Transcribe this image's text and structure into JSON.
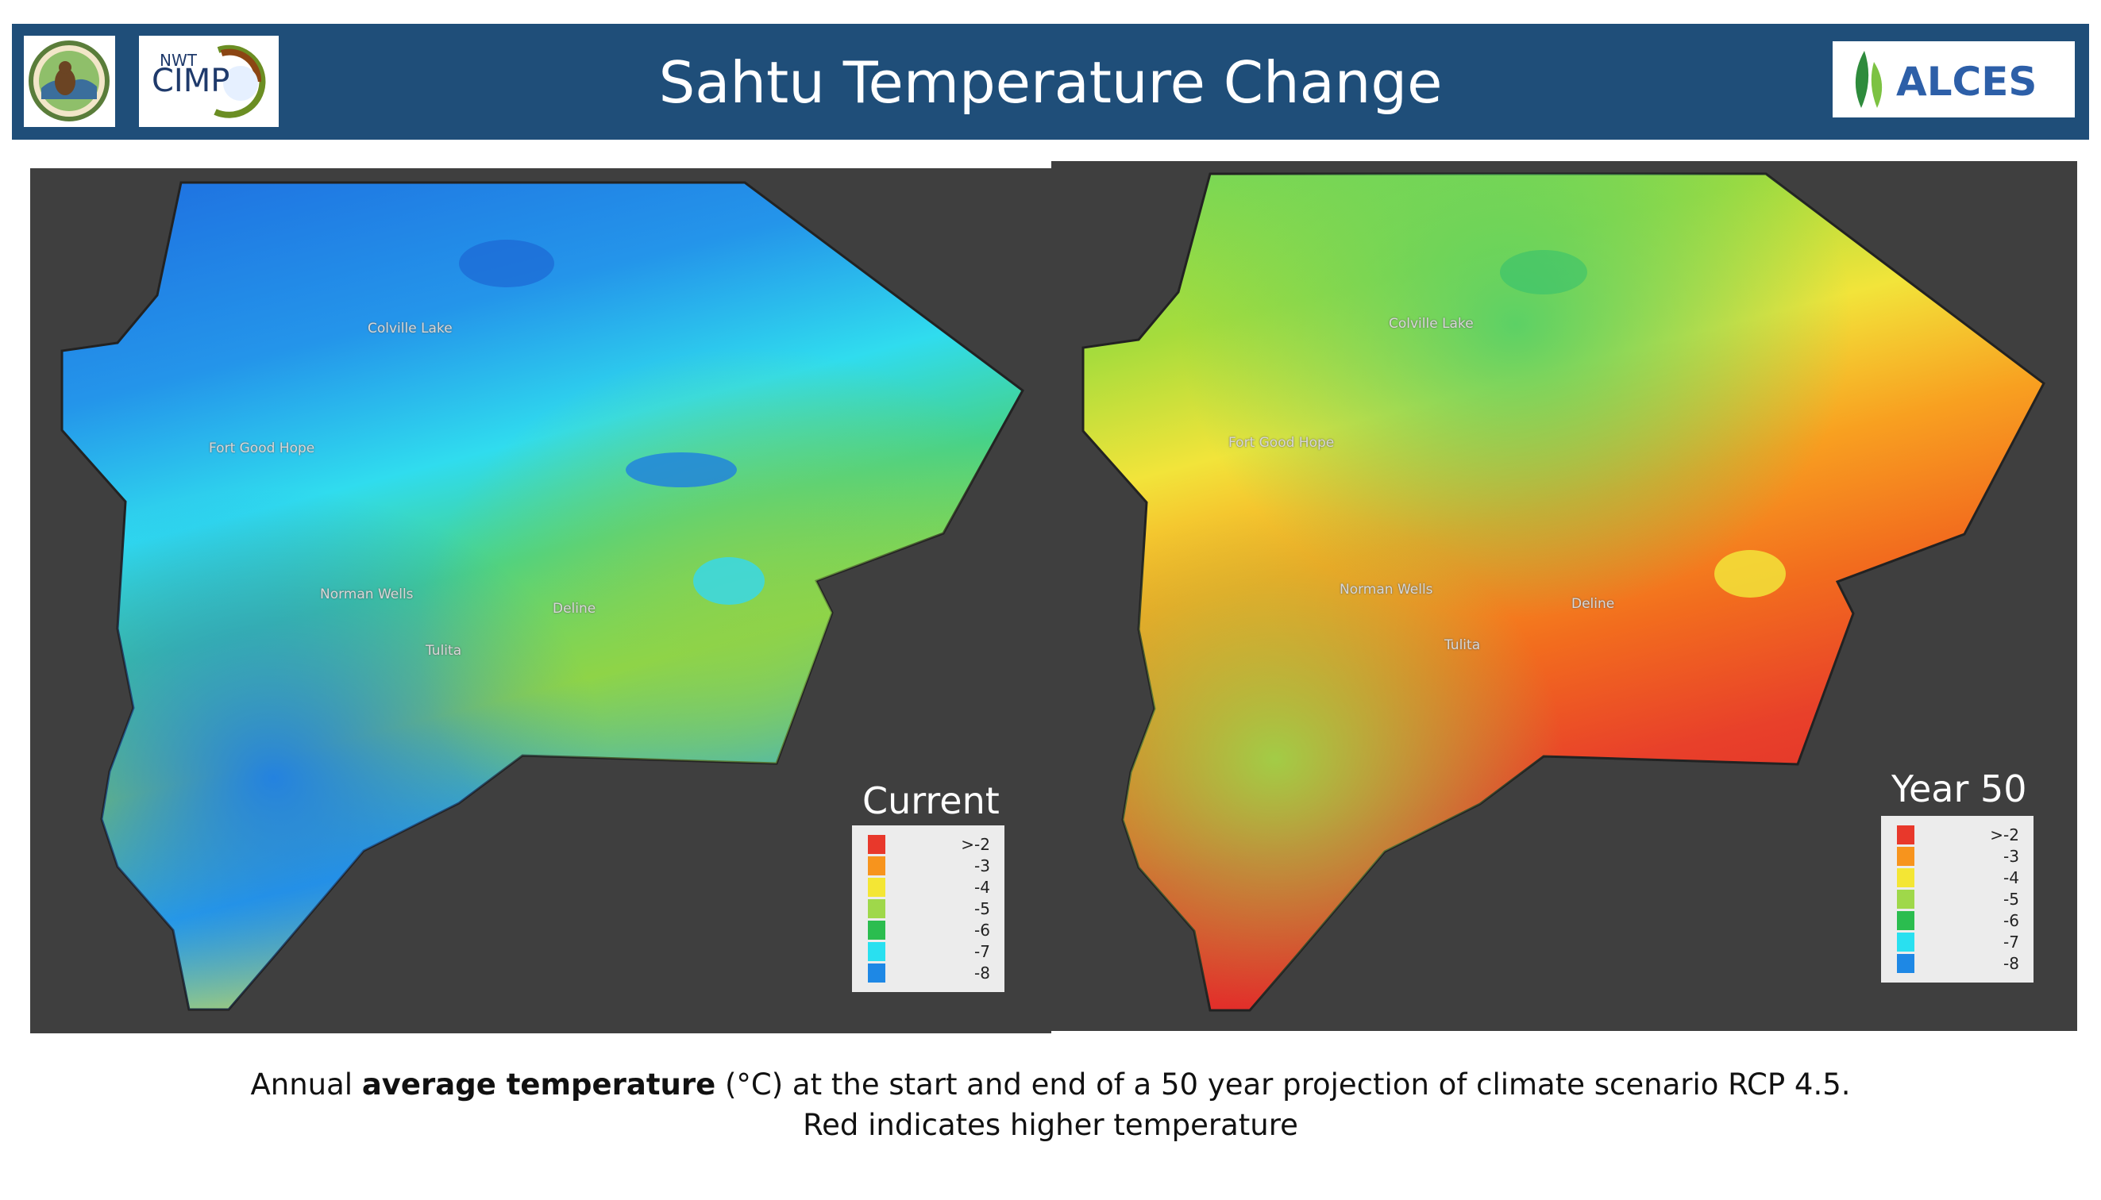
{
  "header": {
    "title": "Sahtu Temperature Change",
    "background_color": "#1f4e79"
  },
  "logos": {
    "sahtu": {
      "icon": "sahtu-renewable-resources-board-logo"
    },
    "cimp": {
      "text_small": "NWT",
      "text_large": "CIMP",
      "icon": "nwt-cimp-logo"
    },
    "alces": {
      "text": "ALCES",
      "icon": "alces-leaf-logo"
    }
  },
  "maps": [
    {
      "label": "Current",
      "places": {
        "colville_lake": "Colville Lake",
        "fort_good_hope": "Fort Good Hope",
        "norman_wells": "Norman Wells",
        "tulita": "Tulita",
        "deline": "Deline"
      }
    },
    {
      "label": "Year 50",
      "places": {
        "colville_lake": "Colville Lake",
        "fort_good_hope": "Fort Good Hope",
        "norman_wells": "Norman Wells",
        "tulita": "Tulita",
        "deline": "Deline"
      }
    }
  ],
  "legend": {
    "items": [
      {
        "value": ">-2",
        "color": "#e8382b"
      },
      {
        "value": "-3",
        "color": "#f7941d"
      },
      {
        "value": "-4",
        "color": "#f4e634"
      },
      {
        "value": "-5",
        "color": "#9fd84a"
      },
      {
        "value": "-6",
        "color": "#2bbd4f"
      },
      {
        "value": "-7",
        "color": "#29e0f0"
      },
      {
        "value": "-8",
        "color": "#1e88e5"
      }
    ]
  },
  "caption": {
    "line1_pre": "Annual ",
    "line1_bold": "average temperature",
    "line1_post": " (°C) at the start and end of a 50 year projection of climate scenario RCP 4.5.",
    "line2": "Red indicates higher temperature"
  }
}
